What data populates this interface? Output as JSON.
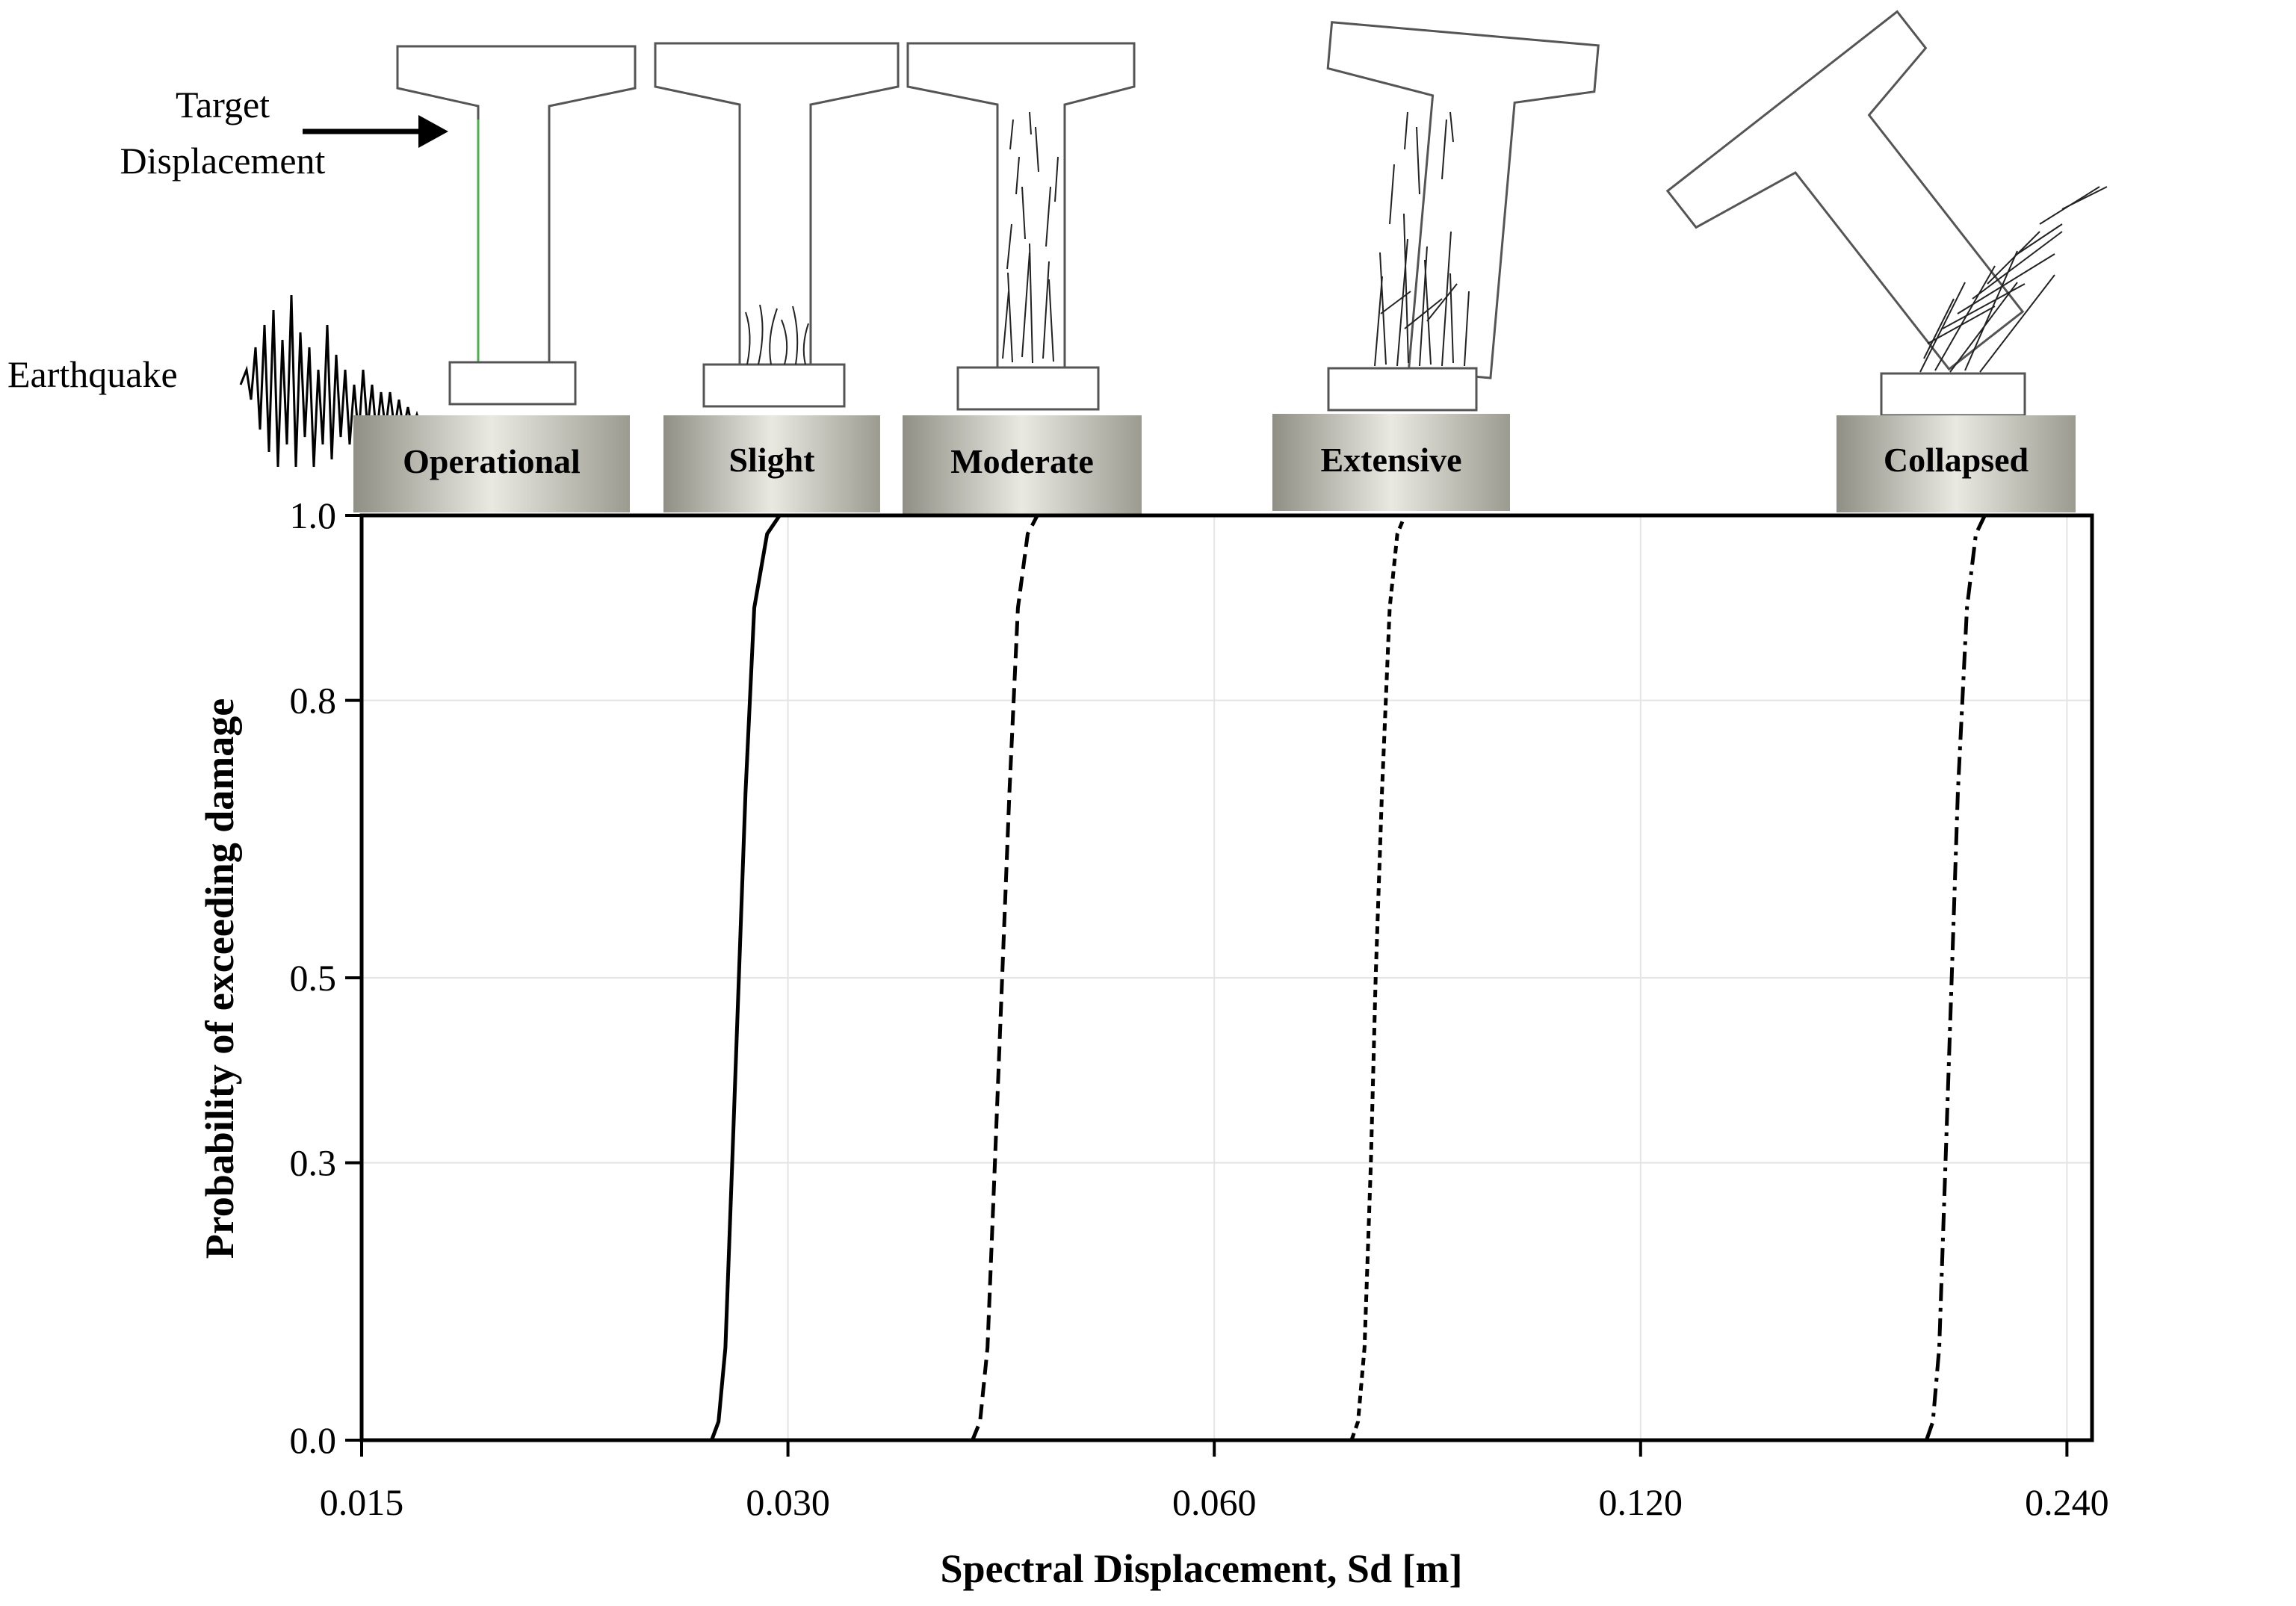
{
  "annotations": {
    "target_line1": "Target",
    "target_line2": "Displacement",
    "earthquake": "Earthquake"
  },
  "damage_states": [
    "Operational",
    "Slight",
    "Moderate",
    "Extensive",
    "Collapsed"
  ],
  "chart_data": {
    "type": "line",
    "title": "",
    "xlabel": "Spectral Displacement, Sd [m]",
    "ylabel": "Probability of exceeding damage",
    "x_scale": "log",
    "xlim": [
      0.015,
      0.25
    ],
    "ylim": [
      0.0,
      1.0
    ],
    "x_ticks": [
      "0.015",
      "0.030",
      "0.060",
      "0.120",
      "0.240"
    ],
    "y_ticks": [
      "0.0",
      "0.3",
      "0.5",
      "0.8",
      "1.0"
    ],
    "grid": true,
    "legend": "none",
    "series": [
      {
        "style": "solid",
        "x": [
          0.0265,
          0.0268,
          0.0271,
          0.0274,
          0.0277,
          0.028,
          0.0284,
          0.029,
          0.0296
        ],
        "y": [
          0.0,
          0.02,
          0.1,
          0.3,
          0.5,
          0.7,
          0.9,
          0.98,
          1.0
        ]
      },
      {
        "style": "dashed",
        "x": [
          0.0405,
          0.041,
          0.0415,
          0.042,
          0.0425,
          0.043,
          0.0436,
          0.0443,
          0.045
        ],
        "y": [
          0.0,
          0.02,
          0.1,
          0.3,
          0.5,
          0.7,
          0.9,
          0.98,
          1.0
        ]
      },
      {
        "style": "short-dashed",
        "x": [
          0.075,
          0.0758,
          0.0766,
          0.0774,
          0.078,
          0.0788,
          0.0798,
          0.0808,
          0.0818
        ],
        "y": [
          0.0,
          0.02,
          0.1,
          0.3,
          0.5,
          0.7,
          0.9,
          0.98,
          1.0
        ]
      },
      {
        "style": "dash-dot",
        "x": [
          0.191,
          0.193,
          0.195,
          0.197,
          0.199,
          0.201,
          0.204,
          0.207,
          0.21
        ],
        "y": [
          0.0,
          0.02,
          0.1,
          0.3,
          0.5,
          0.7,
          0.9,
          0.98,
          1.0
        ]
      }
    ]
  }
}
